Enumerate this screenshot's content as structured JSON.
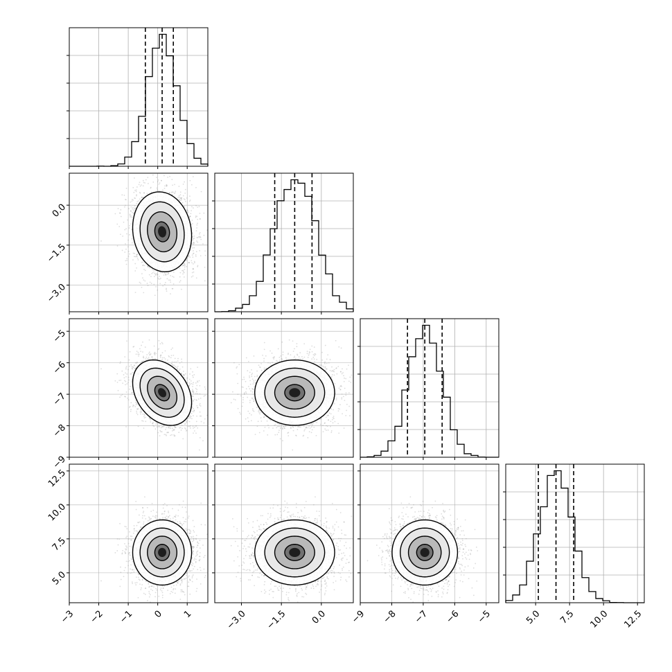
{
  "chart_data": {
    "type": "corner",
    "title": "",
    "parameters": [
      {
        "label": "",
        "range": [
          -3.0,
          1.7
        ],
        "ticks": [
          -3,
          -2,
          -1,
          0,
          1
        ],
        "tick_labels": [
          "−3",
          "−2",
          "−1",
          "0",
          "1"
        ],
        "mean": 0.15,
        "sd": 0.5,
        "quantiles": [
          -0.42,
          0.15,
          0.53
        ]
      },
      {
        "label": "",
        "range": [
          -4.0,
          1.2
        ],
        "ticks": [
          -3.0,
          -1.5,
          0.0
        ],
        "tick_labels": [
          "−3.0",
          "−1.5",
          "0.0"
        ],
        "mean": -1.0,
        "sd": 0.75,
        "quantiles": [
          -1.75,
          -1.0,
          -0.35
        ]
      },
      {
        "label": "",
        "range": [
          -9.0,
          -4.6
        ],
        "ticks": [
          -9,
          -8,
          -7,
          -6,
          -5
        ],
        "tick_labels": [
          "−9",
          "−8",
          "−7",
          "−6",
          "−5"
        ],
        "mean": -6.95,
        "sd": 0.52,
        "quantiles": [
          -7.5,
          -6.95,
          -6.4
        ]
      },
      {
        "label": "",
        "range": [
          2.8,
          13.0
        ],
        "ticks": [
          5.0,
          7.5,
          10.0,
          12.5
        ],
        "tick_labels": [
          "5.0",
          "7.5",
          "10.0",
          "12.5"
        ],
        "mean": 6.5,
        "sd": 1.2,
        "quantiles": [
          5.2,
          6.5,
          7.8
        ]
      }
    ],
    "correlations": [
      [
        1.0,
        -0.1,
        -0.3,
        0.0
      ],
      [
        -0.1,
        1.0,
        0.0,
        0.0
      ],
      [
        -0.3,
        0.0,
        1.0,
        0.0
      ],
      [
        0.0,
        0.0,
        0.0,
        1.0
      ]
    ],
    "histogram_bins": 20,
    "contour_levels_sigma": [
      0.5,
      1.0,
      1.5,
      2.0
    ],
    "quantile_levels": [
      0.16,
      0.5,
      0.84
    ],
    "grid": true,
    "colors": {
      "hist_line": "#000000",
      "scatter": "#9a9a9a",
      "density_dark": "#000000",
      "grid": "#b0b0b0"
    }
  }
}
